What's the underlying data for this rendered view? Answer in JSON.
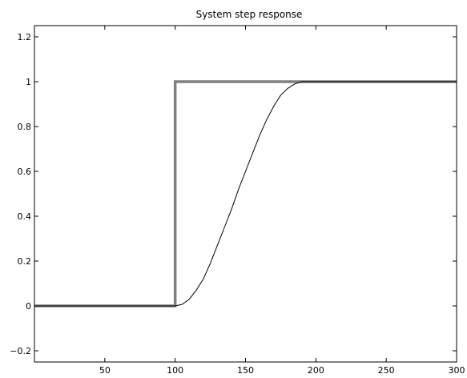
{
  "chart_data": {
    "type": "line",
    "title": "System step response",
    "xlabel": "",
    "ylabel": "",
    "xlim": [
      0,
      300
    ],
    "ylim": [
      -0.25,
      1.25
    ],
    "xticks": [
      50,
      100,
      150,
      200,
      250,
      300
    ],
    "yticks": [
      -0.2,
      0,
      0.2,
      0.4,
      0.6,
      0.8,
      1,
      1.2
    ],
    "ytick_labels": [
      "−0.2",
      "0",
      "0.2",
      "0.4",
      "0.6",
      "0.8",
      "1",
      "1.2"
    ],
    "grid": false,
    "series": [
      {
        "color": "#808080",
        "line_width": "thick",
        "x": [
          0,
          100,
          100,
          300
        ],
        "y": [
          0,
          0,
          1,
          1
        ]
      },
      {
        "color": "#000000",
        "line_width": "thin",
        "x": [
          0,
          100,
          105,
          110,
          115,
          120,
          125,
          130,
          135,
          140,
          145,
          150,
          155,
          160,
          165,
          170,
          175,
          180,
          185,
          190,
          195,
          200,
          250,
          300
        ],
        "y": [
          0,
          0,
          0.007,
          0.03,
          0.07,
          0.12,
          0.19,
          0.27,
          0.35,
          0.43,
          0.52,
          0.6,
          0.68,
          0.76,
          0.83,
          0.89,
          0.94,
          0.97,
          0.99,
          1,
          1,
          1,
          1,
          1
        ]
      }
    ]
  }
}
